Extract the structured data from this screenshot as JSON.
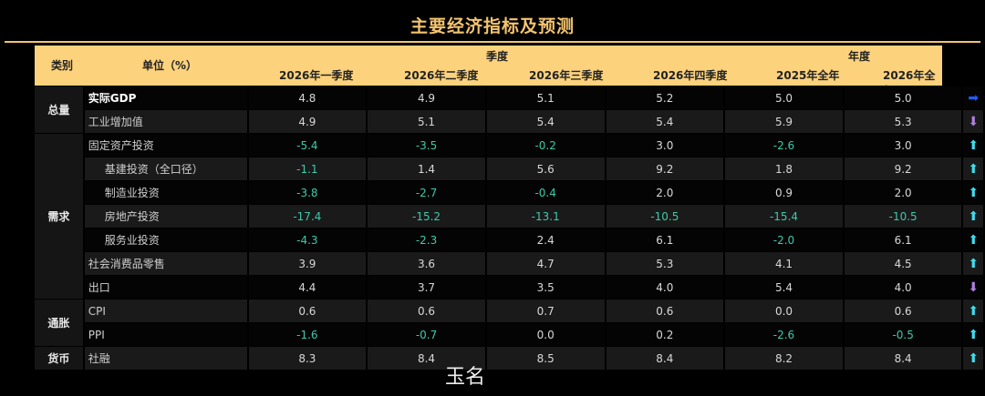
{
  "title": "主要经济指标及预测",
  "header": {
    "category": "类别",
    "unit": "单位（%）",
    "quarter_group": "季度",
    "year_group": "年度",
    "columns": [
      "2026年一季度",
      "2026年二季度",
      "2026年三季度",
      "2026年四季度",
      "2025年全年",
      "2026年全年"
    ]
  },
  "groups": [
    {
      "name": "总量",
      "rows": [
        0,
        1
      ]
    },
    {
      "name": "需求",
      "rows": [
        2,
        3,
        4,
        5,
        6,
        7,
        8
      ]
    },
    {
      "name": "通胀",
      "rows": [
        9,
        10
      ]
    },
    {
      "name": "货币",
      "rows": [
        11
      ]
    }
  ],
  "rows": [
    {
      "label": "实际GDP",
      "values": [
        "4.8",
        "4.9",
        "5.1",
        "5.2",
        "5.0",
        "5.0"
      ],
      "trend": "right",
      "arrow": "➡"
    },
    {
      "label": "工业增加值",
      "values": [
        "4.9",
        "5.1",
        "5.4",
        "5.4",
        "5.9",
        "5.3"
      ],
      "trend": "down",
      "arrow": "⬇"
    },
    {
      "label": "固定资产投资",
      "values": [
        "-5.4",
        "-3.5",
        "-0.2",
        "3.0",
        "-2.6",
        "3.0"
      ],
      "trend": "up",
      "arrow": "⬆"
    },
    {
      "label": "基建投资（全口径）",
      "values": [
        "-1.1",
        "1.4",
        "5.6",
        "9.2",
        "1.8",
        "9.2"
      ],
      "trend": "up",
      "arrow": "⬆"
    },
    {
      "label": "制造业投资",
      "values": [
        "-3.8",
        "-2.7",
        "-0.4",
        "2.0",
        "0.9",
        "2.0"
      ],
      "trend": "up",
      "arrow": "⬆"
    },
    {
      "label": "房地产投资",
      "values": [
        "-17.4",
        "-15.2",
        "-13.1",
        "-10.5",
        "-15.4",
        "-10.5"
      ],
      "trend": "up",
      "arrow": "⬆"
    },
    {
      "label": "服务业投资",
      "values": [
        "-4.3",
        "-2.3",
        "2.4",
        "6.1",
        "-2.0",
        "6.1"
      ],
      "trend": "up",
      "arrow": "⬆"
    },
    {
      "label": "社会消费品零售",
      "values": [
        "3.9",
        "3.6",
        "4.7",
        "5.3",
        "4.1",
        "4.5"
      ],
      "trend": "up",
      "arrow": "⬆"
    },
    {
      "label": "出口",
      "values": [
        "4.4",
        "3.7",
        "3.5",
        "4.0",
        "5.4",
        "4.0"
      ],
      "trend": "down",
      "arrow": "⬇"
    },
    {
      "label": "CPI",
      "values": [
        "0.6",
        "0.6",
        "0.7",
        "0.6",
        "0.0",
        "0.6"
      ],
      "trend": "up",
      "arrow": "⬆"
    },
    {
      "label": "PPI",
      "values": [
        "-1.6",
        "-0.7",
        "0.0",
        "0.2",
        "-2.6",
        "-0.5"
      ],
      "trend": "up",
      "arrow": "⬆"
    },
    {
      "label": "社融",
      "values": [
        "8.3",
        "8.4",
        "8.5",
        "8.4",
        "8.2",
        "8.4"
      ],
      "trend": "up",
      "arrow": "⬆"
    }
  ],
  "colors": {
    "accent": "#f3c46f",
    "header_bg": "#fcd27c",
    "negative": "#3ec9a9",
    "up": "#3fdcef",
    "down": "#b07fe0",
    "right": "#1f5cff"
  },
  "watermark": "玉名"
}
